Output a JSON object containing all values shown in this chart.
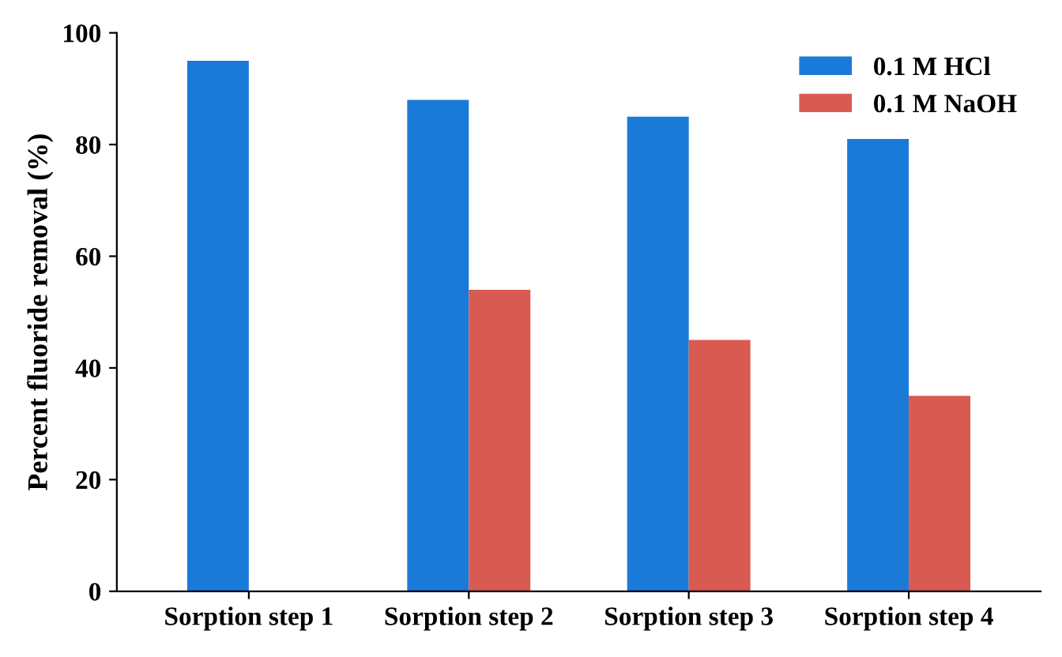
{
  "chart_data": {
    "type": "bar",
    "ylabel": "Percent fluoride removal (%)",
    "categories": [
      "Sorption step 1",
      "Sorption step 2",
      "Sorption step 3",
      "Sorption step 4"
    ],
    "series": [
      {
        "name": "0.1 M HCl",
        "color": "#1a7ad8",
        "values": [
          95,
          88,
          85,
          81
        ]
      },
      {
        "name": "0.1 M NaOH",
        "color": "#d95a50",
        "values": [
          null,
          54,
          45,
          35
        ]
      }
    ],
    "ylim": [
      0,
      100
    ],
    "yticks": [
      0,
      20,
      40,
      60,
      80,
      100
    ],
    "grid": false,
    "legend": "top right"
  }
}
